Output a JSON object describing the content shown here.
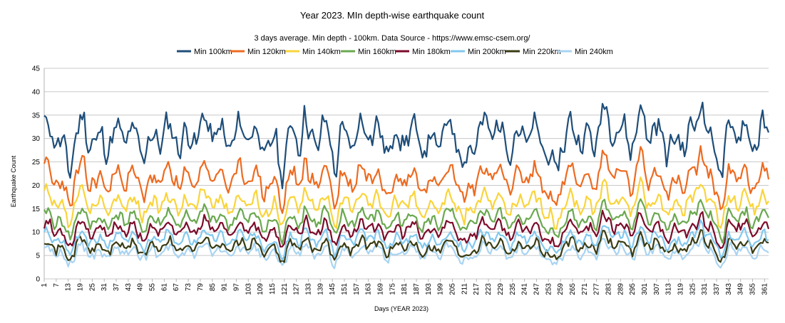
{
  "chart_data": {
    "type": "line",
    "title": "Year 2023. MIn depth-wise earthquake count",
    "subtitle": "3 days average. Min depth - 100km. Data Source - https://www.emsc-csem.org/",
    "xlabel": "Days (YEAR 2023)",
    "ylabel": "Earthquake Count",
    "ylim": [
      0,
      45
    ],
    "yticks": [
      0,
      5,
      10,
      15,
      20,
      25,
      30,
      35,
      40,
      45
    ],
    "xlim": [
      1,
      363
    ],
    "xticks": [
      1,
      7,
      13,
      19,
      25,
      31,
      37,
      43,
      49,
      55,
      61,
      67,
      73,
      79,
      85,
      91,
      97,
      103,
      109,
      115,
      121,
      127,
      133,
      139,
      145,
      151,
      157,
      163,
      169,
      175,
      181,
      187,
      193,
      199,
      205,
      211,
      217,
      223,
      229,
      235,
      241,
      247,
      253,
      259,
      265,
      271,
      277,
      283,
      289,
      295,
      301,
      307,
      313,
      319,
      325,
      331,
      337,
      343,
      349,
      355,
      361
    ],
    "grid": "horizontal",
    "legend_position": "top",
    "series_meta": [
      {
        "name": "Min 100km",
        "color": "#1f4e79",
        "base": 30.5,
        "amp": 4.2,
        "seed": 11
      },
      {
        "name": "Min 120km",
        "color": "#ed6b21",
        "base": 21.5,
        "amp": 3.3,
        "seed": 23
      },
      {
        "name": "Min 140km",
        "color": "#f9d43c",
        "base": 16.2,
        "amp": 2.6,
        "seed": 37
      },
      {
        "name": "Min 160km",
        "color": "#6aa84f",
        "base": 12.8,
        "amp": 2.2,
        "seed": 41
      },
      {
        "name": "Min 180km",
        "color": "#7b0c2b",
        "base": 10.6,
        "amp": 2.0,
        "seed": 53
      },
      {
        "name": "Min 200km",
        "color": "#83c8ee",
        "base": 8.6,
        "amp": 1.8,
        "seed": 67
      },
      {
        "name": "Min 220km",
        "color": "#3a3c14",
        "base": 7.0,
        "amp": 1.7,
        "seed": 71
      },
      {
        "name": "Min 240km",
        "color": "#a8d4f2",
        "base": 5.8,
        "amp": 1.6,
        "seed": 89
      }
    ],
    "dips": [
      13,
      25,
      120,
      146,
      211,
      256,
      340
    ],
    "peaks": [
      25,
      131,
      280,
      299,
      329,
      330
    ]
  }
}
